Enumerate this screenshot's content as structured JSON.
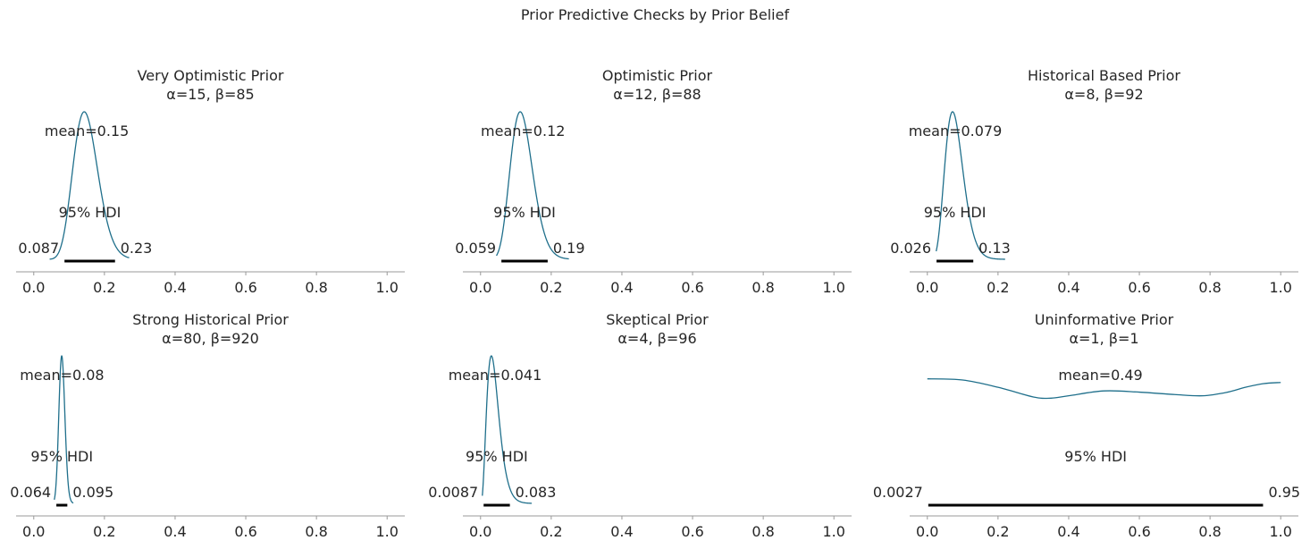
{
  "suptitle": "Prior Predictive Checks by Prior Belief",
  "colors": {
    "density": "#1f6f8b",
    "hdi": "#000000",
    "axis": "#999999",
    "text": "#262626"
  },
  "chart_data": [
    {
      "type": "line",
      "title": "Very Optimistic Prior",
      "subtitle": "α=15, β=85",
      "alpha": 15,
      "beta": 85,
      "xlim": [
        -0.05,
        1.05
      ],
      "xticks": [
        "0.0",
        "0.2",
        "0.4",
        "0.6",
        "0.8",
        "1.0"
      ],
      "mean_label": "mean=0.15",
      "hdi_label": "95% HDI",
      "hdi": [
        0.087,
        0.23
      ],
      "hdi_low_label": "0.087",
      "hdi_high_label": "0.23",
      "density_range": [
        0.045,
        0.27
      ]
    },
    {
      "type": "line",
      "title": "Optimistic Prior",
      "subtitle": "α=12, β=88",
      "alpha": 12,
      "beta": 88,
      "xlim": [
        -0.05,
        1.05
      ],
      "xticks": [
        "0.0",
        "0.2",
        "0.4",
        "0.6",
        "0.8",
        "1.0"
      ],
      "mean_label": "mean=0.12",
      "hdi_label": "95% HDI",
      "hdi": [
        0.059,
        0.19
      ],
      "hdi_low_label": "0.059",
      "hdi_high_label": "0.19",
      "density_range": [
        0.045,
        0.25
      ]
    },
    {
      "type": "line",
      "title": "Historical Based Prior",
      "subtitle": "α=8, β=92",
      "alpha": 8,
      "beta": 92,
      "xlim": [
        -0.05,
        1.05
      ],
      "xticks": [
        "0.0",
        "0.2",
        "0.4",
        "0.6",
        "0.8",
        "1.0"
      ],
      "mean_label": "mean=0.079",
      "hdi_label": "95% HDI",
      "hdi": [
        0.026,
        0.13
      ],
      "hdi_low_label": "0.026",
      "hdi_high_label": "0.13",
      "density_range": [
        0.025,
        0.22
      ]
    },
    {
      "type": "line",
      "title": "Strong Historical Prior",
      "subtitle": "α=80, β=920",
      "alpha": 80,
      "beta": 920,
      "xlim": [
        -0.05,
        1.05
      ],
      "xticks": [
        "0.0",
        "0.2",
        "0.4",
        "0.6",
        "0.8",
        "1.0"
      ],
      "mean_label": "mean=0.08",
      "hdi_label": "95% HDI",
      "hdi": [
        0.064,
        0.095
      ],
      "hdi_low_label": "0.064",
      "hdi_high_label": "0.095",
      "density_range": [
        0.058,
        0.112
      ]
    },
    {
      "type": "line",
      "title": "Skeptical Prior",
      "subtitle": "α=4, β=96",
      "alpha": 4,
      "beta": 96,
      "xlim": [
        -0.05,
        1.05
      ],
      "xticks": [
        "0.0",
        "0.2",
        "0.4",
        "0.6",
        "0.8",
        "1.0"
      ],
      "mean_label": "mean=0.041",
      "hdi_label": "95% HDI",
      "hdi": [
        0.0087,
        0.083
      ],
      "hdi_low_label": "0.0087",
      "hdi_high_label": "0.083",
      "density_range": [
        0.005,
        0.145
      ]
    },
    {
      "type": "line",
      "title": "Uninformative Prior",
      "subtitle": "α=1, β=1",
      "alpha": 1,
      "beta": 1,
      "xlim": [
        -0.05,
        1.05
      ],
      "xticks": [
        "0.0",
        "0.2",
        "0.4",
        "0.6",
        "0.8",
        "1.0"
      ],
      "mean_label": "mean=0.49",
      "hdi_label": "95% HDI",
      "hdi": [
        0.0027,
        0.95
      ],
      "hdi_low_label": "0.0027",
      "hdi_high_label": "0.95",
      "density_range": [
        0.0,
        1.0
      ],
      "density_curve": {
        "x": [
          0.0,
          0.1,
          0.2,
          0.3,
          0.35,
          0.4,
          0.5,
          0.6,
          0.7,
          0.78,
          0.85,
          0.9,
          0.95,
          1.0
        ],
        "y": [
          1.06,
          1.05,
          0.99,
          0.91,
          0.9,
          0.92,
          0.96,
          0.95,
          0.93,
          0.92,
          0.95,
          0.99,
          1.02,
          1.03
        ]
      }
    }
  ]
}
